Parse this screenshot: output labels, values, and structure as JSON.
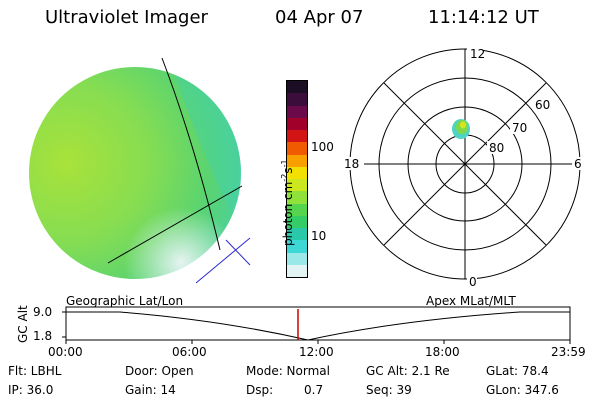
{
  "header": {
    "instrument": "Ultraviolet Imager",
    "date": "04 Apr 07",
    "time": "11:14:12 UT"
  },
  "colorbar": {
    "unit_label": "photon cm",
    "unit_exp1": "-2",
    "unit_s": "s",
    "unit_exp2": "-1",
    "ticks": [
      "100",
      "10"
    ],
    "colors": [
      "#1a0d24",
      "#3a0d3a",
      "#6a0a4a",
      "#a0002a",
      "#d21414",
      "#f05a00",
      "#f7a000",
      "#f2e000",
      "#cbe81e",
      "#8ee23a",
      "#55d44e",
      "#33cc66",
      "#28c8a8",
      "#3fd6d6",
      "#9be8e8",
      "#e3f2f2"
    ]
  },
  "polar_plot": {
    "mlt_labels": {
      "top": "12",
      "left": "18",
      "right": "6",
      "bottom": "0"
    },
    "lat_labels": [
      "60",
      "70",
      "80"
    ]
  },
  "timeline": {
    "left_title": "Geographic Lat/Lon",
    "right_title": "Apex  MLat/MLT",
    "axis_label": "GC Alt",
    "y_ticks": [
      "9.0",
      "1.8"
    ],
    "x_ticks": [
      "00:00",
      "06:00",
      "12:00",
      "18:00",
      "23:59"
    ],
    "marker_color": "#cc0000"
  },
  "info": {
    "flt": "Flt: LBHL",
    "ip": "IP: 36.0",
    "door": "Door: Open",
    "gain": "Gain: 14",
    "mode": "Mode: Normal",
    "dsp_label": "Dsp:",
    "dsp_value": "0.7",
    "gc_alt": "GC Alt: 2.1 Re",
    "seq": "Seq: 39",
    "glat": "GLat:  78.4",
    "glon": "GLon: 347.6"
  }
}
